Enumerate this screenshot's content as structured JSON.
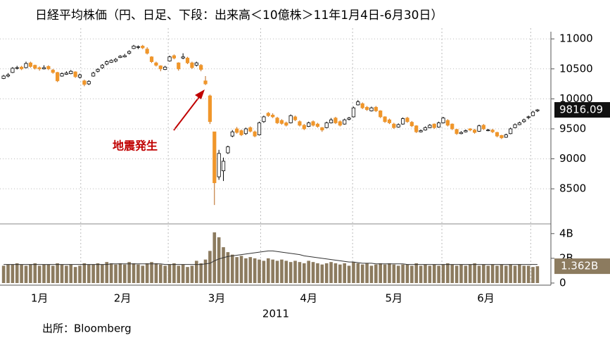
{
  "chart_data": [
    {
      "type": "candlestick",
      "title": "日経平均株価（円、日足、下段：出来高＜10億株＞11年1月4日-6月30日）",
      "annotation": "地震発生",
      "up_color": "#ffffff",
      "down_color": "#f0962a",
      "xlim": [
        -0.8,
        122
      ],
      "ylim": [
        7950,
        11120
      ],
      "yticks": [
        8500,
        9000,
        9500,
        10000,
        10500,
        11000
      ],
      "grid": true,
      "xgrid": [
        17.2,
        36.7,
        57.3,
        77.8,
        97.7,
        117.5
      ],
      "ohlc": [
        [
          10340,
          10400,
          10330,
          10380
        ],
        [
          10380,
          10430,
          10360,
          10400
        ],
        [
          10440,
          10530,
          10430,
          10510
        ],
        [
          10510,
          10550,
          10490,
          10520
        ],
        [
          10530,
          10550,
          10480,
          10500
        ],
        [
          10520,
          10620,
          10510,
          10590
        ],
        [
          10600,
          10620,
          10520,
          10540
        ],
        [
          10560,
          10570,
          10490,
          10510
        ],
        [
          10520,
          10540,
          10470,
          10500
        ],
        [
          10500,
          10560,
          10490,
          10520
        ],
        [
          10540,
          10560,
          10480,
          10500
        ],
        [
          10480,
          10500,
          10420,
          10440
        ],
        [
          10440,
          10450,
          10280,
          10300
        ],
        [
          10380,
          10440,
          10370,
          10420
        ],
        [
          10410,
          10460,
          10400,
          10430
        ],
        [
          10420,
          10480,
          10410,
          10460
        ],
        [
          10450,
          10460,
          10350,
          10370
        ],
        [
          10360,
          10420,
          10340,
          10400
        ],
        [
          10300,
          10320,
          10210,
          10240
        ],
        [
          10250,
          10310,
          10230,
          10290
        ],
        [
          10380,
          10450,
          10370,
          10430
        ],
        [
          10460,
          10510,
          10440,
          10490
        ],
        [
          10520,
          10580,
          10500,
          10560
        ],
        [
          10580,
          10640,
          10560,
          10620
        ],
        [
          10610,
          10660,
          10600,
          10640
        ],
        [
          10630,
          10680,
          10610,
          10660
        ],
        [
          10690,
          10730,
          10680,
          10710
        ],
        [
          10700,
          10750,
          10690,
          10720
        ],
        [
          10760,
          10810,
          10740,
          10790
        ],
        [
          10840,
          10900,
          10830,
          10880
        ],
        [
          10860,
          10890,
          10830,
          10870
        ],
        [
          10880,
          10900,
          10830,
          10850
        ],
        [
          10830,
          10860,
          10740,
          10760
        ],
        [
          10700,
          10710,
          10600,
          10620
        ],
        [
          10600,
          10620,
          10540,
          10560
        ],
        [
          10550,
          10560,
          10460,
          10500
        ],
        [
          10490,
          10550,
          10480,
          10530
        ],
        [
          10630,
          10720,
          10620,
          10700
        ],
        [
          10720,
          10740,
          10660,
          10680
        ],
        [
          10600,
          10610,
          10470,
          10500
        ],
        [
          10680,
          10760,
          10660,
          10700
        ],
        [
          10680,
          10700,
          10580,
          10600
        ],
        [
          10600,
          10620,
          10500,
          10520
        ],
        [
          10560,
          10620,
          10540,
          10600
        ],
        [
          10560,
          10580,
          10460,
          10490
        ],
        [
          10300,
          10380,
          10230,
          10250
        ],
        [
          10050,
          10070,
          9580,
          9620
        ],
        [
          9450,
          9450,
          8230,
          8600
        ],
        [
          8700,
          9150,
          8650,
          9090
        ],
        [
          8800,
          9020,
          8630,
          8960
        ],
        [
          9100,
          9220,
          9080,
          9200
        ],
        [
          9380,
          9480,
          9360,
          9450
        ],
        [
          9500,
          9530,
          9420,
          9440
        ],
        [
          9470,
          9490,
          9380,
          9400
        ],
        [
          9420,
          9520,
          9400,
          9500
        ],
        [
          9520,
          9540,
          9440,
          9460
        ],
        [
          9450,
          9470,
          9360,
          9380
        ],
        [
          9400,
          9620,
          9390,
          9600
        ],
        [
          9620,
          9720,
          9600,
          9700
        ],
        [
          9760,
          9780,
          9700,
          9720
        ],
        [
          9730,
          9760,
          9680,
          9700
        ],
        [
          9680,
          9700,
          9580,
          9600
        ],
        [
          9640,
          9660,
          9570,
          9590
        ],
        [
          9600,
          9620,
          9540,
          9560
        ],
        [
          9600,
          9740,
          9590,
          9720
        ],
        [
          9700,
          9720,
          9630,
          9650
        ],
        [
          9620,
          9640,
          9540,
          9560
        ],
        [
          9560,
          9580,
          9480,
          9500
        ],
        [
          9540,
          9620,
          9530,
          9600
        ],
        [
          9620,
          9640,
          9540,
          9560
        ],
        [
          9580,
          9600,
          9520,
          9540
        ],
        [
          9520,
          9530,
          9450,
          9480
        ],
        [
          9520,
          9620,
          9510,
          9600
        ],
        [
          9600,
          9680,
          9590,
          9650
        ],
        [
          9680,
          9700,
          9580,
          9600
        ],
        [
          9620,
          9640,
          9540,
          9560
        ],
        [
          9580,
          9670,
          9570,
          9650
        ],
        [
          9660,
          9700,
          9640,
          9680
        ],
        [
          9700,
          9870,
          9690,
          9850
        ],
        [
          9900,
          9980,
          9890,
          9950
        ],
        [
          9920,
          9940,
          9830,
          9850
        ],
        [
          9860,
          9880,
          9800,
          9820
        ],
        [
          9800,
          9870,
          9790,
          9850
        ],
        [
          9860,
          9880,
          9780,
          9800
        ],
        [
          9800,
          9810,
          9680,
          9700
        ],
        [
          9700,
          9710,
          9600,
          9620
        ],
        [
          9650,
          9670,
          9580,
          9600
        ],
        [
          9580,
          9600,
          9500,
          9520
        ],
        [
          9530,
          9590,
          9520,
          9570
        ],
        [
          9580,
          9690,
          9570,
          9670
        ],
        [
          9680,
          9700,
          9600,
          9620
        ],
        [
          9610,
          9630,
          9530,
          9550
        ],
        [
          9550,
          9560,
          9430,
          9450
        ],
        [
          9450,
          9490,
          9440,
          9470
        ],
        [
          9480,
          9540,
          9470,
          9520
        ],
        [
          9520,
          9580,
          9510,
          9560
        ],
        [
          9580,
          9590,
          9500,
          9520
        ],
        [
          9530,
          9620,
          9520,
          9600
        ],
        [
          9600,
          9700,
          9590,
          9680
        ],
        [
          9640,
          9660,
          9540,
          9560
        ],
        [
          9580,
          9590,
          9480,
          9500
        ],
        [
          9490,
          9500,
          9400,
          9420
        ],
        [
          9420,
          9460,
          9410,
          9440
        ],
        [
          9450,
          9490,
          9440,
          9470
        ],
        [
          9500,
          9510,
          9460,
          9480
        ],
        [
          9480,
          9500,
          9420,
          9440
        ],
        [
          9460,
          9570,
          9450,
          9550
        ],
        [
          9560,
          9580,
          9480,
          9500
        ],
        [
          9470,
          9500,
          9460,
          9480
        ],
        [
          9480,
          9500,
          9430,
          9450
        ],
        [
          9440,
          9450,
          9360,
          9380
        ],
        [
          9390,
          9400,
          9330,
          9350
        ],
        [
          9360,
          9420,
          9350,
          9400
        ],
        [
          9420,
          9520,
          9410,
          9500
        ],
        [
          9520,
          9590,
          9510,
          9570
        ],
        [
          9570,
          9620,
          9560,
          9600
        ],
        [
          9620,
          9670,
          9600,
          9650
        ],
        [
          9690,
          9720,
          9660,
          9700
        ],
        [
          9720,
          9800,
          9710,
          9780
        ],
        [
          9800,
          9830,
          9780,
          9816.09
        ]
      ]
    },
    {
      "type": "bar",
      "color": "#8c7b5f",
      "line_color": "#333333",
      "xlabel": "2011",
      "xlim": [
        -0.8,
        122
      ],
      "ylim": [
        0,
        4.5
      ],
      "yticks": [
        0,
        {
          "value": 2,
          "label": "2B"
        },
        {
          "value": 4,
          "label": "4B"
        }
      ],
      "xticks": [
        {
          "value": 8,
          "label": "1月"
        },
        {
          "value": 26.5,
          "label": "2月"
        },
        {
          "value": 47.5,
          "label": "3月"
        },
        {
          "value": 68,
          "label": "4月"
        },
        {
          "value": 87,
          "label": "5月"
        },
        {
          "value": 107.5,
          "label": "6月"
        }
      ],
      "last_label": "1.362B",
      "values": [
        1.4,
        1.5,
        1.5,
        1.6,
        1.5,
        1.4,
        1.5,
        1.6,
        1.4,
        1.5,
        1.5,
        1.4,
        1.6,
        1.5,
        1.4,
        1.5,
        1.3,
        1.4,
        1.6,
        1.5,
        1.5,
        1.6,
        1.5,
        1.7,
        1.6,
        1.5,
        1.6,
        1.5,
        1.7,
        1.6,
        1.5,
        1.4,
        1.6,
        1.7,
        1.6,
        1.5,
        1.4,
        1.5,
        1.6,
        1.4,
        1.5,
        1.3,
        1.4,
        1.8,
        1.6,
        1.9,
        2.6,
        4.1,
        3.7,
        2.9,
        2.5,
        2.3,
        2.1,
        2.2,
        2.0,
        2.1,
        2.0,
        1.9,
        1.8,
        2.0,
        1.9,
        1.8,
        1.9,
        1.8,
        1.7,
        1.8,
        1.7,
        1.6,
        1.8,
        1.7,
        1.6,
        1.5,
        1.6,
        1.7,
        1.6,
        1.5,
        1.6,
        1.4,
        1.7,
        1.6,
        1.5,
        1.6,
        1.4,
        1.5,
        1.6,
        1.5,
        1.6,
        1.5,
        1.4,
        1.5,
        1.5,
        1.4,
        1.6,
        1.4,
        1.5,
        1.4,
        1.5,
        1.4,
        1.5,
        1.6,
        1.5,
        1.4,
        1.5,
        1.4,
        1.5,
        1.6,
        1.4,
        1.5,
        1.4,
        1.5,
        1.4,
        1.5,
        1.4,
        1.5,
        1.4,
        1.5,
        1.4,
        1.4,
        1.3,
        1.362
      ],
      "ma": [
        1.5,
        1.5,
        1.5,
        1.5,
        1.5,
        1.5,
        1.5,
        1.5,
        1.5,
        1.5,
        1.5,
        1.5,
        1.5,
        1.5,
        1.5,
        1.5,
        1.5,
        1.5,
        1.5,
        1.5,
        1.5,
        1.5,
        1.5,
        1.5,
        1.55,
        1.55,
        1.55,
        1.55,
        1.55,
        1.55,
        1.55,
        1.55,
        1.55,
        1.55,
        1.55,
        1.55,
        1.5,
        1.5,
        1.5,
        1.5,
        1.5,
        1.5,
        1.5,
        1.5,
        1.5,
        1.55,
        1.6,
        1.8,
        1.95,
        2.05,
        2.15,
        2.2,
        2.25,
        2.3,
        2.35,
        2.4,
        2.45,
        2.5,
        2.55,
        2.6,
        2.6,
        2.55,
        2.5,
        2.45,
        2.4,
        2.35,
        2.3,
        2.2,
        2.15,
        2.1,
        2.05,
        2.0,
        1.95,
        1.9,
        1.85,
        1.8,
        1.75,
        1.7,
        1.7,
        1.65,
        1.6,
        1.6,
        1.6,
        1.55,
        1.55,
        1.55,
        1.55,
        1.55,
        1.55,
        1.55,
        1.5,
        1.5,
        1.5,
        1.5,
        1.5,
        1.5,
        1.5,
        1.5,
        1.5,
        1.5,
        1.5,
        1.5,
        1.5,
        1.5,
        1.5,
        1.5,
        1.5,
        1.5,
        1.5,
        1.5,
        1.5,
        1.5,
        1.5,
        1.5,
        1.5,
        1.5,
        1.5,
        1.5,
        1.5,
        1.5
      ]
    }
  ],
  "source": "出所：Bloomberg"
}
